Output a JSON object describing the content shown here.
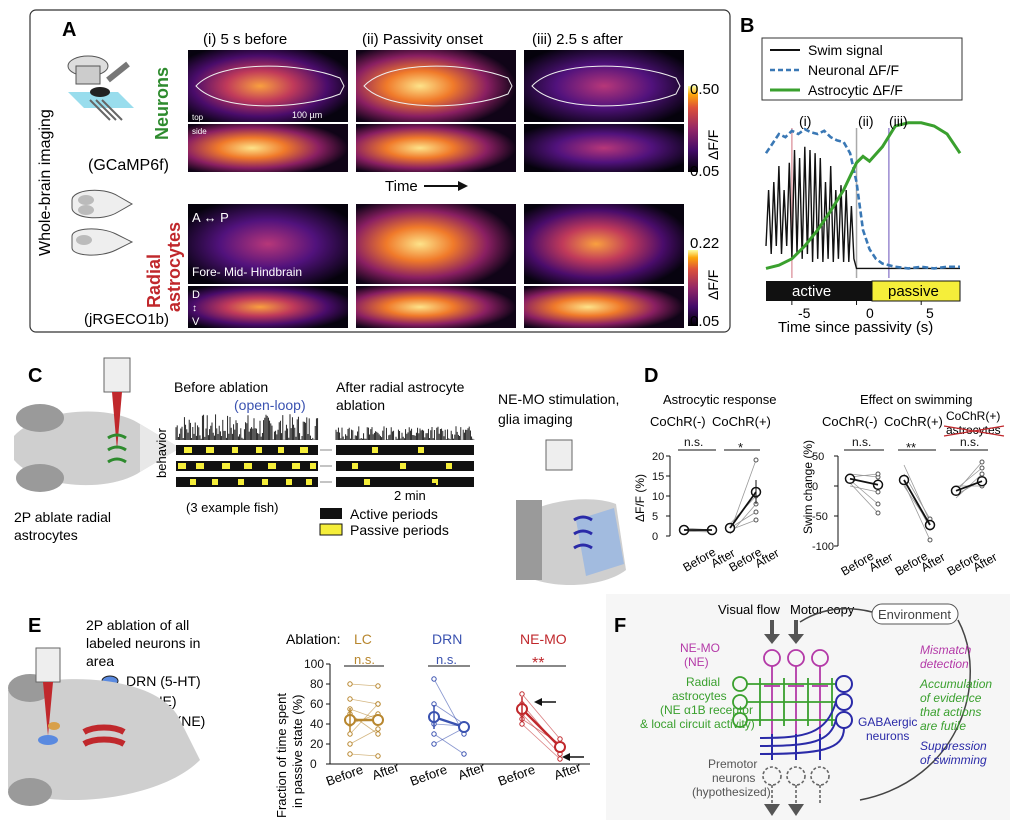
{
  "colors": {
    "neuron_green": "#2e8b2e",
    "astro_red": "#c0282c",
    "swim_black": "#111111",
    "neuronal_blue": "#3a78b5",
    "astro_green": "#3aa02e",
    "passive_yellow": "#f5ee3a",
    "lc_tan": "#b8872f",
    "drn_blue": "#3a52b0",
    "nemo_red": "#c0282c",
    "nemo_magenta": "#b43aa8",
    "gaba_navy": "#2a2aa8"
  },
  "panelA": {
    "letter": "A",
    "side_title": "Whole-brain imaging",
    "col_i": "(i) 5 s before",
    "col_ii": "(ii) Passivity onset",
    "col_iii": "(iii) 2.5 s after",
    "neurons_label": "Neurons",
    "neurons_sensor": "(GCaMP6f)",
    "astro_line1": "Radial",
    "astro_line2": "astrocytes",
    "astro_sensor": "(jRGECO1b)",
    "top_label": "top",
    "side_label": "side",
    "scalebar": "100 µm",
    "ap_axis": "A ↔ P",
    "regions": "Fore-   Mid-   Hindbrain",
    "dorsal": "D",
    "ventral": "V",
    "dv_arrow": "↕",
    "time_arrow": "Time",
    "cbar_neuron_max": "0.50",
    "cbar_neuron_min": "0.05",
    "cbar_astro_max": "0.22",
    "cbar_astro_min": "0.05",
    "cbar_label": "ΔF/F"
  },
  "panelB": {
    "letter": "B",
    "legend": [
      "Swim signal",
      "Neuronal ΔF/F",
      "Astrocytic ΔF/F"
    ],
    "marks": [
      "(i)",
      "(ii)",
      "(iii)"
    ],
    "active_label": "active",
    "passive_label": "passive",
    "xticks": [
      "-5",
      "0",
      "5"
    ],
    "xlabel": "Time since passivity (s)"
  },
  "panelC": {
    "letter": "C",
    "caption_line1": "2P ablate radial",
    "caption_line2": "astrocytes",
    "before": "Before ablation",
    "open_loop": "(open-loop)",
    "after_line1": "After radial astrocyte",
    "after_line2": "ablation",
    "behavior": "behavior",
    "example": "(3 example fish)",
    "scale": "2 min",
    "legend_active": "Active periods",
    "legend_passive": "Passive periods",
    "nemo_line1": "NE-MO stimulation,",
    "nemo_line2": "glia imaging"
  },
  "panelD": {
    "letter": "D",
    "left_title": "Astrocytic response",
    "right_title": "Effect on swimming",
    "cochr_neg": "CoChR(-)",
    "cochr_pos": "CoChR(+)",
    "cochr_pos_ablated_1": "CoChR(+)",
    "cochr_pos_ablated_2": "astrocytes",
    "left_ylabel": "ΔF/F (%)",
    "right_ylabel": "Swim change (%)",
    "left_yticks": [
      "20",
      "15",
      "10",
      "5",
      "0"
    ],
    "right_yticks": [
      "50",
      "0",
      "-50",
      "-100"
    ],
    "before": "Before",
    "after": "After",
    "ns": "n.s.",
    "star1": "*",
    "star2": "**"
  },
  "panelE": {
    "letter": "E",
    "line1": "2P ablation of all",
    "line2": "labeled neurons in",
    "line3": "area",
    "legend": [
      "DRN (5-HT)",
      "LC (NE)",
      "NE-MO (NE)"
    ],
    "ablation": "Ablation:",
    "groups": [
      "LC",
      "DRN",
      "NE-MO"
    ],
    "ylabel_1": "Fraction of time spent",
    "ylabel_2": "in passive state (%)",
    "yticks": [
      "100",
      "80",
      "60",
      "40",
      "20",
      "0"
    ],
    "before": "Before",
    "after": "After",
    "ns": "n.s.",
    "star2": "**"
  },
  "panelF": {
    "letter": "F",
    "visual_flow": "Visual flow",
    "motor_copy": "Motor copy",
    "environment": "Environment",
    "nemo_1": "NE-MO",
    "nemo_2": "(NE)",
    "astro_1": "Radial",
    "astro_2": "astrocytes",
    "astro_3": "(NE α1B receptor",
    "astro_4": "& local circuit activity)",
    "gaba_1": "GABAergic",
    "gaba_2": "neurons",
    "premotor_1": "Premotor",
    "premotor_2": "neurons",
    "premotor_3": "(hypothesized)",
    "mismatch_1": "Mismatch",
    "mismatch_2": "detection",
    "accum_1": "Accumulation",
    "accum_2": "of evidence",
    "accum_3": "that actions",
    "accum_4": "are futile",
    "supp_1": "Suppression",
    "supp_2": "of swimming"
  },
  "chart_data": [
    {
      "type": "line",
      "title": "Panel B",
      "xlabel": "Time since passivity (s)",
      "xlim": [
        -7,
        8
      ],
      "ylim": [
        0,
        1
      ],
      "series": [
        {
          "name": "Swim signal",
          "x": [
            -7,
            -6.8,
            -6.6,
            -6.4,
            -6.2,
            -6,
            -5.8,
            -5.6,
            -5.4,
            -5.2,
            -5,
            -4.8,
            -4.6,
            -4.4,
            -4.2,
            -4,
            -3.8,
            -3.6,
            -3.4,
            -3.2,
            -3,
            -2.8,
            -2.6,
            -2.4,
            -2.2,
            -2,
            -1.8,
            -1.6,
            -1.4,
            -1.2,
            -1,
            -0.8,
            -0.6,
            -0.4,
            -0.2,
            0,
            0.5,
            1,
            2,
            3,
            4,
            5,
            6,
            7,
            8
          ],
          "values": [
            0.2,
            0.55,
            0.15,
            0.6,
            0.2,
            0.7,
            0.15,
            0.55,
            0.2,
            0.72,
            0.12,
            0.8,
            0.15,
            0.75,
            0.12,
            0.82,
            0.15,
            0.8,
            0.1,
            0.78,
            0.12,
            0.75,
            0.1,
            0.6,
            0.12,
            0.7,
            0.1,
            0.55,
            0.12,
            0.58,
            0.1,
            0.55,
            0.1,
            0.45,
            0.12,
            0.06,
            0.06,
            0.06,
            0.06,
            0.06,
            0.06,
            0.06,
            0.06,
            0.06,
            0.06
          ]
        },
        {
          "name": "Neuronal ΔF/F",
          "x": [
            -7,
            -6.5,
            -6,
            -5.5,
            -5,
            -4.5,
            -4,
            -3.5,
            -3,
            -2.5,
            -2,
            -1.5,
            -1,
            -0.5,
            0,
            0.5,
            1,
            1.5,
            2,
            3,
            4,
            5,
            6,
            7,
            8
          ],
          "values": [
            0.78,
            0.84,
            0.9,
            0.88,
            0.92,
            0.9,
            0.93,
            0.91,
            0.9,
            0.92,
            0.88,
            0.86,
            0.85,
            0.78,
            0.6,
            0.3,
            0.18,
            0.12,
            0.09,
            0.07,
            0.06,
            0.07,
            0.06,
            0.07,
            0.07
          ]
        },
        {
          "name": "Astrocytic ΔF/F",
          "x": [
            -7,
            -6,
            -5,
            -4,
            -3,
            -2,
            -1,
            0,
            0.5,
            1,
            2,
            3,
            4,
            5,
            6,
            7,
            8
          ],
          "values": [
            0.06,
            0.08,
            0.12,
            0.2,
            0.3,
            0.42,
            0.55,
            0.72,
            0.76,
            0.73,
            0.82,
            0.95,
            0.97,
            0.97,
            0.95,
            0.9,
            0.78
          ]
        }
      ],
      "annotations": [
        "(i)",
        "(ii)",
        "(iii)",
        "active",
        "passive"
      ]
    },
    {
      "type": "scatter",
      "title": "Panel D: Astrocytic response",
      "ylabel": "ΔF/F (%)",
      "ylim": [
        0,
        20
      ],
      "categories": [
        "CoChR(-) Before",
        "CoChR(-) After",
        "CoChR(+) Before",
        "CoChR(+) After"
      ],
      "series": [
        {
          "name": "mean",
          "values": [
            1.5,
            1.5,
            2,
            11
          ]
        }
      ]
    },
    {
      "type": "scatter",
      "title": "Panel D: Effect on swimming",
      "ylabel": "Swim change (%)",
      "ylim": [
        -100,
        50
      ],
      "categories": [
        "CoChR(-) Before",
        "CoChR(-) After",
        "CoChR(+) Before",
        "CoChR(+) After",
        "CoChR(+) astrocytes Before",
        "CoChR(+) astrocytes After"
      ],
      "series": [
        {
          "name": "mean",
          "values": [
            12,
            2,
            10,
            -65,
            -8,
            8
          ]
        }
      ]
    },
    {
      "type": "scatter",
      "title": "Panel E",
      "ylabel": "Fraction of time spent in passive state (%)",
      "ylim": [
        0,
        100
      ],
      "categories": [
        "LC Before",
        "LC After",
        "DRN Before",
        "DRN After",
        "NE-MO Before",
        "NE-MO After"
      ],
      "series": [
        {
          "name": "mean",
          "values": [
            44,
            44,
            47,
            37,
            55,
            17
          ]
        }
      ]
    }
  ]
}
